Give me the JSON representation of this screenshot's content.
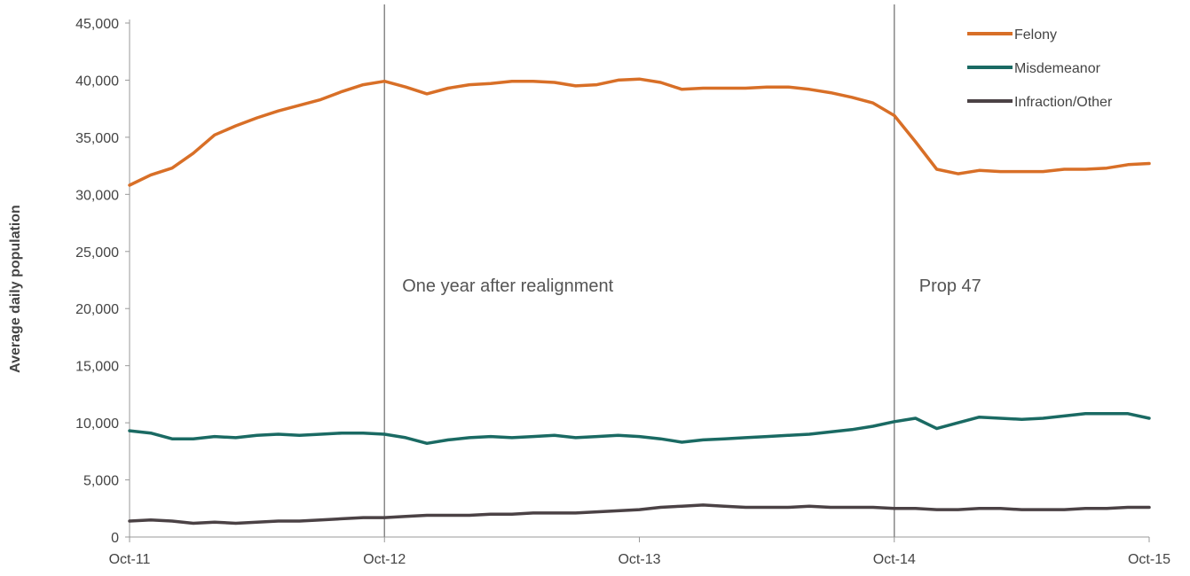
{
  "chart_data": {
    "type": "line",
    "title": "",
    "xlabel": "",
    "ylabel": "Average daily population",
    "ylim": [
      0,
      45000
    ],
    "yticks": [
      0,
      5000,
      10000,
      15000,
      20000,
      25000,
      30000,
      35000,
      40000,
      45000
    ],
    "ytick_labels": [
      "0",
      "5,000",
      "10,000",
      "15,000",
      "20,000",
      "25,000",
      "30,000",
      "35,000",
      "40,000",
      "45,000"
    ],
    "xtick_labels": [
      "Oct-11",
      "Oct-12",
      "Oct-13",
      "Oct-14",
      "Oct-15"
    ],
    "xtick_months": [
      0,
      12,
      24,
      36,
      48
    ],
    "x_months": [
      0,
      1,
      2,
      3,
      4,
      5,
      6,
      7,
      8,
      9,
      10,
      11,
      12,
      13,
      14,
      15,
      16,
      17,
      18,
      19,
      20,
      21,
      22,
      23,
      24,
      25,
      26,
      27,
      28,
      29,
      30,
      31,
      32,
      33,
      34,
      35,
      36,
      37,
      38,
      39,
      40,
      41,
      42,
      43,
      44,
      45,
      46,
      47,
      48
    ],
    "legend_position": "top-right",
    "grid": false,
    "series": [
      {
        "name": "Felony",
        "color": "#d86f27",
        "values": [
          30800,
          31700,
          32300,
          33600,
          35200,
          36000,
          36700,
          37300,
          37800,
          38300,
          39000,
          39600,
          39900,
          39400,
          38800,
          39300,
          39600,
          39700,
          39900,
          39900,
          39800,
          39500,
          39600,
          40000,
          40100,
          39800,
          39200,
          39300,
          39300,
          39300,
          39400,
          39400,
          39200,
          38900,
          38500,
          38000,
          36900,
          34600,
          32200,
          31800,
          32100,
          32000,
          32000,
          32000,
          32200,
          32200,
          32300,
          32600,
          32700
        ]
      },
      {
        "name": "Misdemeanor",
        "color": "#1a6a63",
        "values": [
          9300,
          9100,
          8600,
          8600,
          8800,
          8700,
          8900,
          9000,
          8900,
          9000,
          9100,
          9100,
          9000,
          8700,
          8200,
          8500,
          8700,
          8800,
          8700,
          8800,
          8900,
          8700,
          8800,
          8900,
          8800,
          8600,
          8300,
          8500,
          8600,
          8700,
          8800,
          8900,
          9000,
          9200,
          9400,
          9700,
          10100,
          10400,
          9500,
          10000,
          10500,
          10400,
          10300,
          10400,
          10600,
          10800,
          10800,
          10800,
          10400
        ]
      },
      {
        "name": "Infraction/Other",
        "color": "#4b4245",
        "values": [
          1400,
          1500,
          1400,
          1200,
          1300,
          1200,
          1300,
          1400,
          1400,
          1500,
          1600,
          1700,
          1700,
          1800,
          1900,
          1900,
          1900,
          2000,
          2000,
          2100,
          2100,
          2100,
          2200,
          2300,
          2400,
          2600,
          2700,
          2800,
          2700,
          2600,
          2600,
          2600,
          2700,
          2600,
          2600,
          2600,
          2500,
          2500,
          2400,
          2400,
          2500,
          2500,
          2400,
          2400,
          2400,
          2500,
          2500,
          2600,
          2600
        ]
      }
    ],
    "vlines": [
      {
        "month": 12,
        "label": "One year after realignment"
      },
      {
        "month": 36,
        "label": "Prop 47"
      }
    ]
  }
}
